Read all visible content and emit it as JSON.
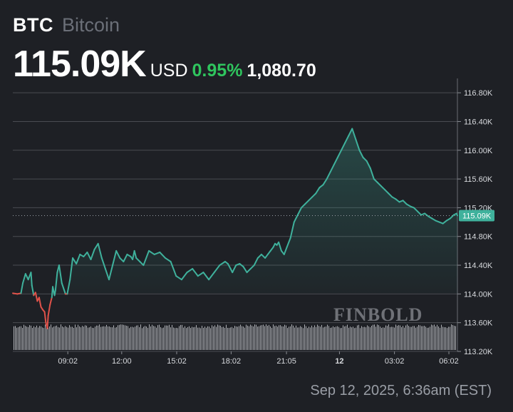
{
  "header": {
    "symbol": "BTC",
    "name": "Bitcoin",
    "price": "115.09K",
    "currency": "USD",
    "change_percent": "0.95%",
    "change_value": "1,080.70"
  },
  "timestamp": "Sep 12, 2025, 6:36am (EST)",
  "watermark": "FINBOLD",
  "colors": {
    "background": "#1e2025",
    "line_up": "#3fb19c",
    "line_down": "#e0524a",
    "positive_text": "#2fc55e",
    "grid": "#4a4c52",
    "volume": "#c9cbd0"
  },
  "chart_data": {
    "type": "area",
    "title": "",
    "xlabel": "",
    "ylabel": "",
    "ylim": [
      113.2,
      117.0
    ],
    "y_ticks": [
      "116.80K",
      "116.40K",
      "116.00K",
      "115.60K",
      "115.20K",
      "114.80K",
      "114.40K",
      "114.00K",
      "113.60K",
      "113.20K"
    ],
    "y_tick_values": [
      116.8,
      116.4,
      116.0,
      115.6,
      115.2,
      114.8,
      114.4,
      114.0,
      113.6,
      113.2
    ],
    "x_ticks": [
      "09:02",
      "12:00",
      "15:02",
      "18:02",
      "21:05",
      "12",
      "03:02",
      "06:02"
    ],
    "x_tick_hours": [
      3.03,
      6.0,
      9.03,
      12.03,
      15.08,
      18.0,
      21.03,
      24.03
    ],
    "x_range_hours": [
      0.0,
      24.5
    ],
    "current_price_label": "115.09K",
    "current_price": 115.09,
    "reference_price": 114.01,
    "grid": true,
    "x_unit": "hours since 06:00 Sep 11",
    "series": [
      {
        "x": [
          0.0,
          0.25,
          0.45,
          0.55,
          0.7,
          0.85,
          1.0,
          1.05,
          1.15,
          1.25,
          1.35,
          1.45,
          1.55,
          1.65,
          1.75,
          1.82,
          1.9,
          1.95,
          2.05,
          2.15,
          2.2,
          2.3,
          2.35,
          2.45,
          2.55,
          2.7,
          2.9,
          3.0,
          3.15,
          3.3,
          3.5,
          3.7,
          3.9,
          4.1,
          4.3,
          4.5,
          4.7,
          4.9,
          5.1,
          5.3,
          5.5,
          5.7,
          5.9,
          6.1,
          6.3,
          6.5,
          6.6,
          6.7,
          6.8,
          7.0,
          7.2,
          7.5,
          7.8,
          8.1,
          8.4,
          8.7,
          9.0,
          9.3,
          9.6,
          9.9,
          10.2,
          10.5,
          10.8,
          11.1,
          11.4,
          11.7,
          11.85,
          12.0,
          12.1,
          12.2,
          12.3,
          12.5,
          12.7,
          12.9,
          13.1,
          13.3,
          13.5,
          13.7,
          13.9,
          14.05,
          14.2,
          14.35,
          14.45,
          14.55,
          14.65,
          14.8,
          14.95,
          15.1,
          15.3,
          15.5,
          15.7,
          15.9,
          16.1,
          16.3,
          16.5,
          16.7,
          16.9,
          17.1,
          17.3,
          17.5,
          17.7,
          17.9,
          18.1,
          18.3,
          18.5,
          18.7,
          18.9,
          19.1,
          19.3,
          19.5,
          19.7,
          19.9,
          20.1,
          20.3,
          20.5,
          20.7,
          20.9,
          21.1,
          21.3,
          21.5,
          21.7,
          21.9,
          22.1,
          22.3,
          22.5,
          22.7,
          22.9,
          23.1,
          23.3,
          23.5,
          23.7,
          23.9,
          24.1,
          24.3,
          24.45,
          24.5
        ],
        "y": [
          114.01,
          114.0,
          114.01,
          114.15,
          114.28,
          114.2,
          114.3,
          114.12,
          113.98,
          114.02,
          113.9,
          113.95,
          113.82,
          113.78,
          113.75,
          113.6,
          113.52,
          113.7,
          113.85,
          113.95,
          114.1,
          113.98,
          114.05,
          114.3,
          114.4,
          114.15,
          114.0,
          114.0,
          114.2,
          114.5,
          114.42,
          114.55,
          114.52,
          114.58,
          114.48,
          114.62,
          114.7,
          114.5,
          114.35,
          114.2,
          114.4,
          114.6,
          114.5,
          114.45,
          114.55,
          114.52,
          114.48,
          114.6,
          114.5,
          114.45,
          114.4,
          114.6,
          114.55,
          114.58,
          114.5,
          114.45,
          114.25,
          114.2,
          114.3,
          114.35,
          114.25,
          114.3,
          114.2,
          114.3,
          114.4,
          114.45,
          114.42,
          114.35,
          114.3,
          114.35,
          114.4,
          114.42,
          114.38,
          114.3,
          114.35,
          114.4,
          114.5,
          114.55,
          114.5,
          114.55,
          114.6,
          114.65,
          114.7,
          114.68,
          114.72,
          114.6,
          114.55,
          114.65,
          114.78,
          115.0,
          115.1,
          115.2,
          115.25,
          115.3,
          115.35,
          115.4,
          115.48,
          115.52,
          115.6,
          115.7,
          115.8,
          115.9,
          116.0,
          116.1,
          116.2,
          116.3,
          116.15,
          116.0,
          115.9,
          115.85,
          115.75,
          115.6,
          115.55,
          115.5,
          115.45,
          115.4,
          115.35,
          115.32,
          115.28,
          115.3,
          115.25,
          115.22,
          115.2,
          115.15,
          115.1,
          115.12,
          115.08,
          115.05,
          115.02,
          115.0,
          114.98,
          115.02,
          115.05,
          115.1,
          115.12,
          115.09
        ]
      }
    ]
  }
}
